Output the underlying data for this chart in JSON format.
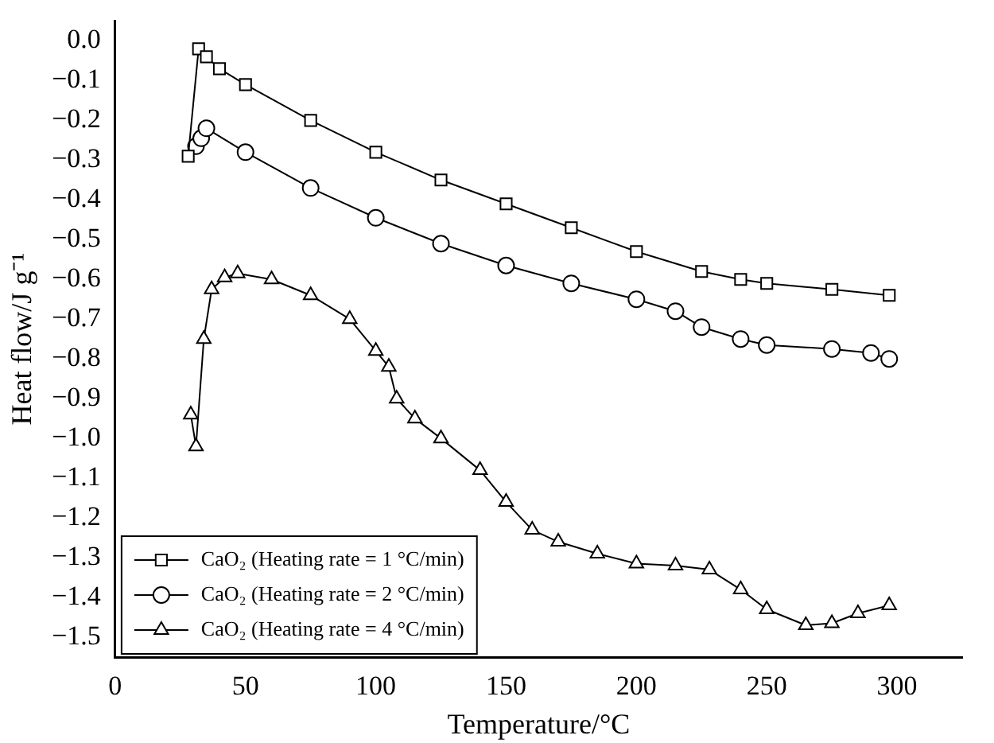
{
  "chart_data": {
    "type": "line",
    "xlabel": "Temperature/°C",
    "ylabel": "Heat flow/J g⁻¹",
    "xlim": [
      0,
      325
    ],
    "xticks": [
      0,
      50,
      100,
      150,
      200,
      250,
      300
    ],
    "ylim": [
      -1.55,
      0.05
    ],
    "yticks": [
      {
        "value": 0,
        "label": "0.0"
      },
      {
        "value": -0.1,
        "label": "−0.1"
      },
      {
        "value": -0.2,
        "label": "−0.2"
      },
      {
        "value": -0.3,
        "label": "−0.3"
      },
      {
        "value": -0.4,
        "label": "−0.4"
      },
      {
        "value": -0.5,
        "label": "−0.5"
      },
      {
        "value": -0.6,
        "label": "−0.6"
      },
      {
        "value": -0.7,
        "label": "−0.7"
      },
      {
        "value": -0.8,
        "label": "−0.8"
      },
      {
        "value": -0.9,
        "label": "−0.9"
      },
      {
        "value": -1,
        "label": "−1.0"
      },
      {
        "value": -1.1,
        "label": "−1.1"
      },
      {
        "value": -1.2,
        "label": "−1.2"
      },
      {
        "value": -1.3,
        "label": "−1.3"
      },
      {
        "value": -1.4,
        "label": "−1.4"
      },
      {
        "value": -1.5,
        "label": "−1.5"
      }
    ],
    "grid": false,
    "legend": "bottom left",
    "line_style": "solid",
    "series": [
      {
        "name": "CaO₂ (Heating rate = 1 °C/min)",
        "color": "#000000",
        "marker": "square",
        "x": [
          28,
          32,
          35,
          40,
          50,
          75,
          100,
          125,
          150,
          175,
          200,
          225,
          240,
          250,
          275,
          297
        ],
        "values": [
          -0.29,
          -0.02,
          -0.04,
          -0.07,
          -0.11,
          -0.2,
          -0.28,
          -0.35,
          -0.41,
          -0.47,
          -0.53,
          -0.58,
          -0.6,
          -0.61,
          -0.625,
          -0.64
        ]
      },
      {
        "name": "CaO₂ (Heating rate = 2 °C/min)",
        "color": "#000000",
        "marker": "circle",
        "x": [
          31,
          33,
          35,
          50,
          75,
          100,
          125,
          150,
          175,
          200,
          215,
          225,
          240,
          250,
          275,
          290,
          297
        ],
        "values": [
          -0.265,
          -0.245,
          -0.22,
          -0.28,
          -0.37,
          -0.445,
          -0.51,
          -0.565,
          -0.61,
          -0.65,
          -0.68,
          -0.72,
          -0.75,
          -0.765,
          -0.775,
          -0.785,
          -0.8
        ]
      },
      {
        "name": "CaO₂ (Heating rate = 4 °C/min)",
        "color": "#000000",
        "marker": "triangle",
        "x": [
          29,
          31,
          34,
          37,
          42,
          47,
          60,
          75,
          90,
          100,
          105,
          108,
          115,
          125,
          140,
          150,
          160,
          170,
          185,
          200,
          215,
          228,
          240,
          250,
          265,
          275,
          285,
          297
        ],
        "values": [
          -0.94,
          -1.02,
          -0.75,
          -0.625,
          -0.595,
          -0.585,
          -0.6,
          -0.64,
          -0.7,
          -0.78,
          -0.82,
          -0.9,
          -0.95,
          -1,
          -1.08,
          -1.16,
          -1.23,
          -1.26,
          -1.29,
          -1.315,
          -1.32,
          -1.33,
          -1.38,
          -1.43,
          -1.47,
          -1.465,
          -1.44,
          -1.42
        ]
      }
    ]
  }
}
